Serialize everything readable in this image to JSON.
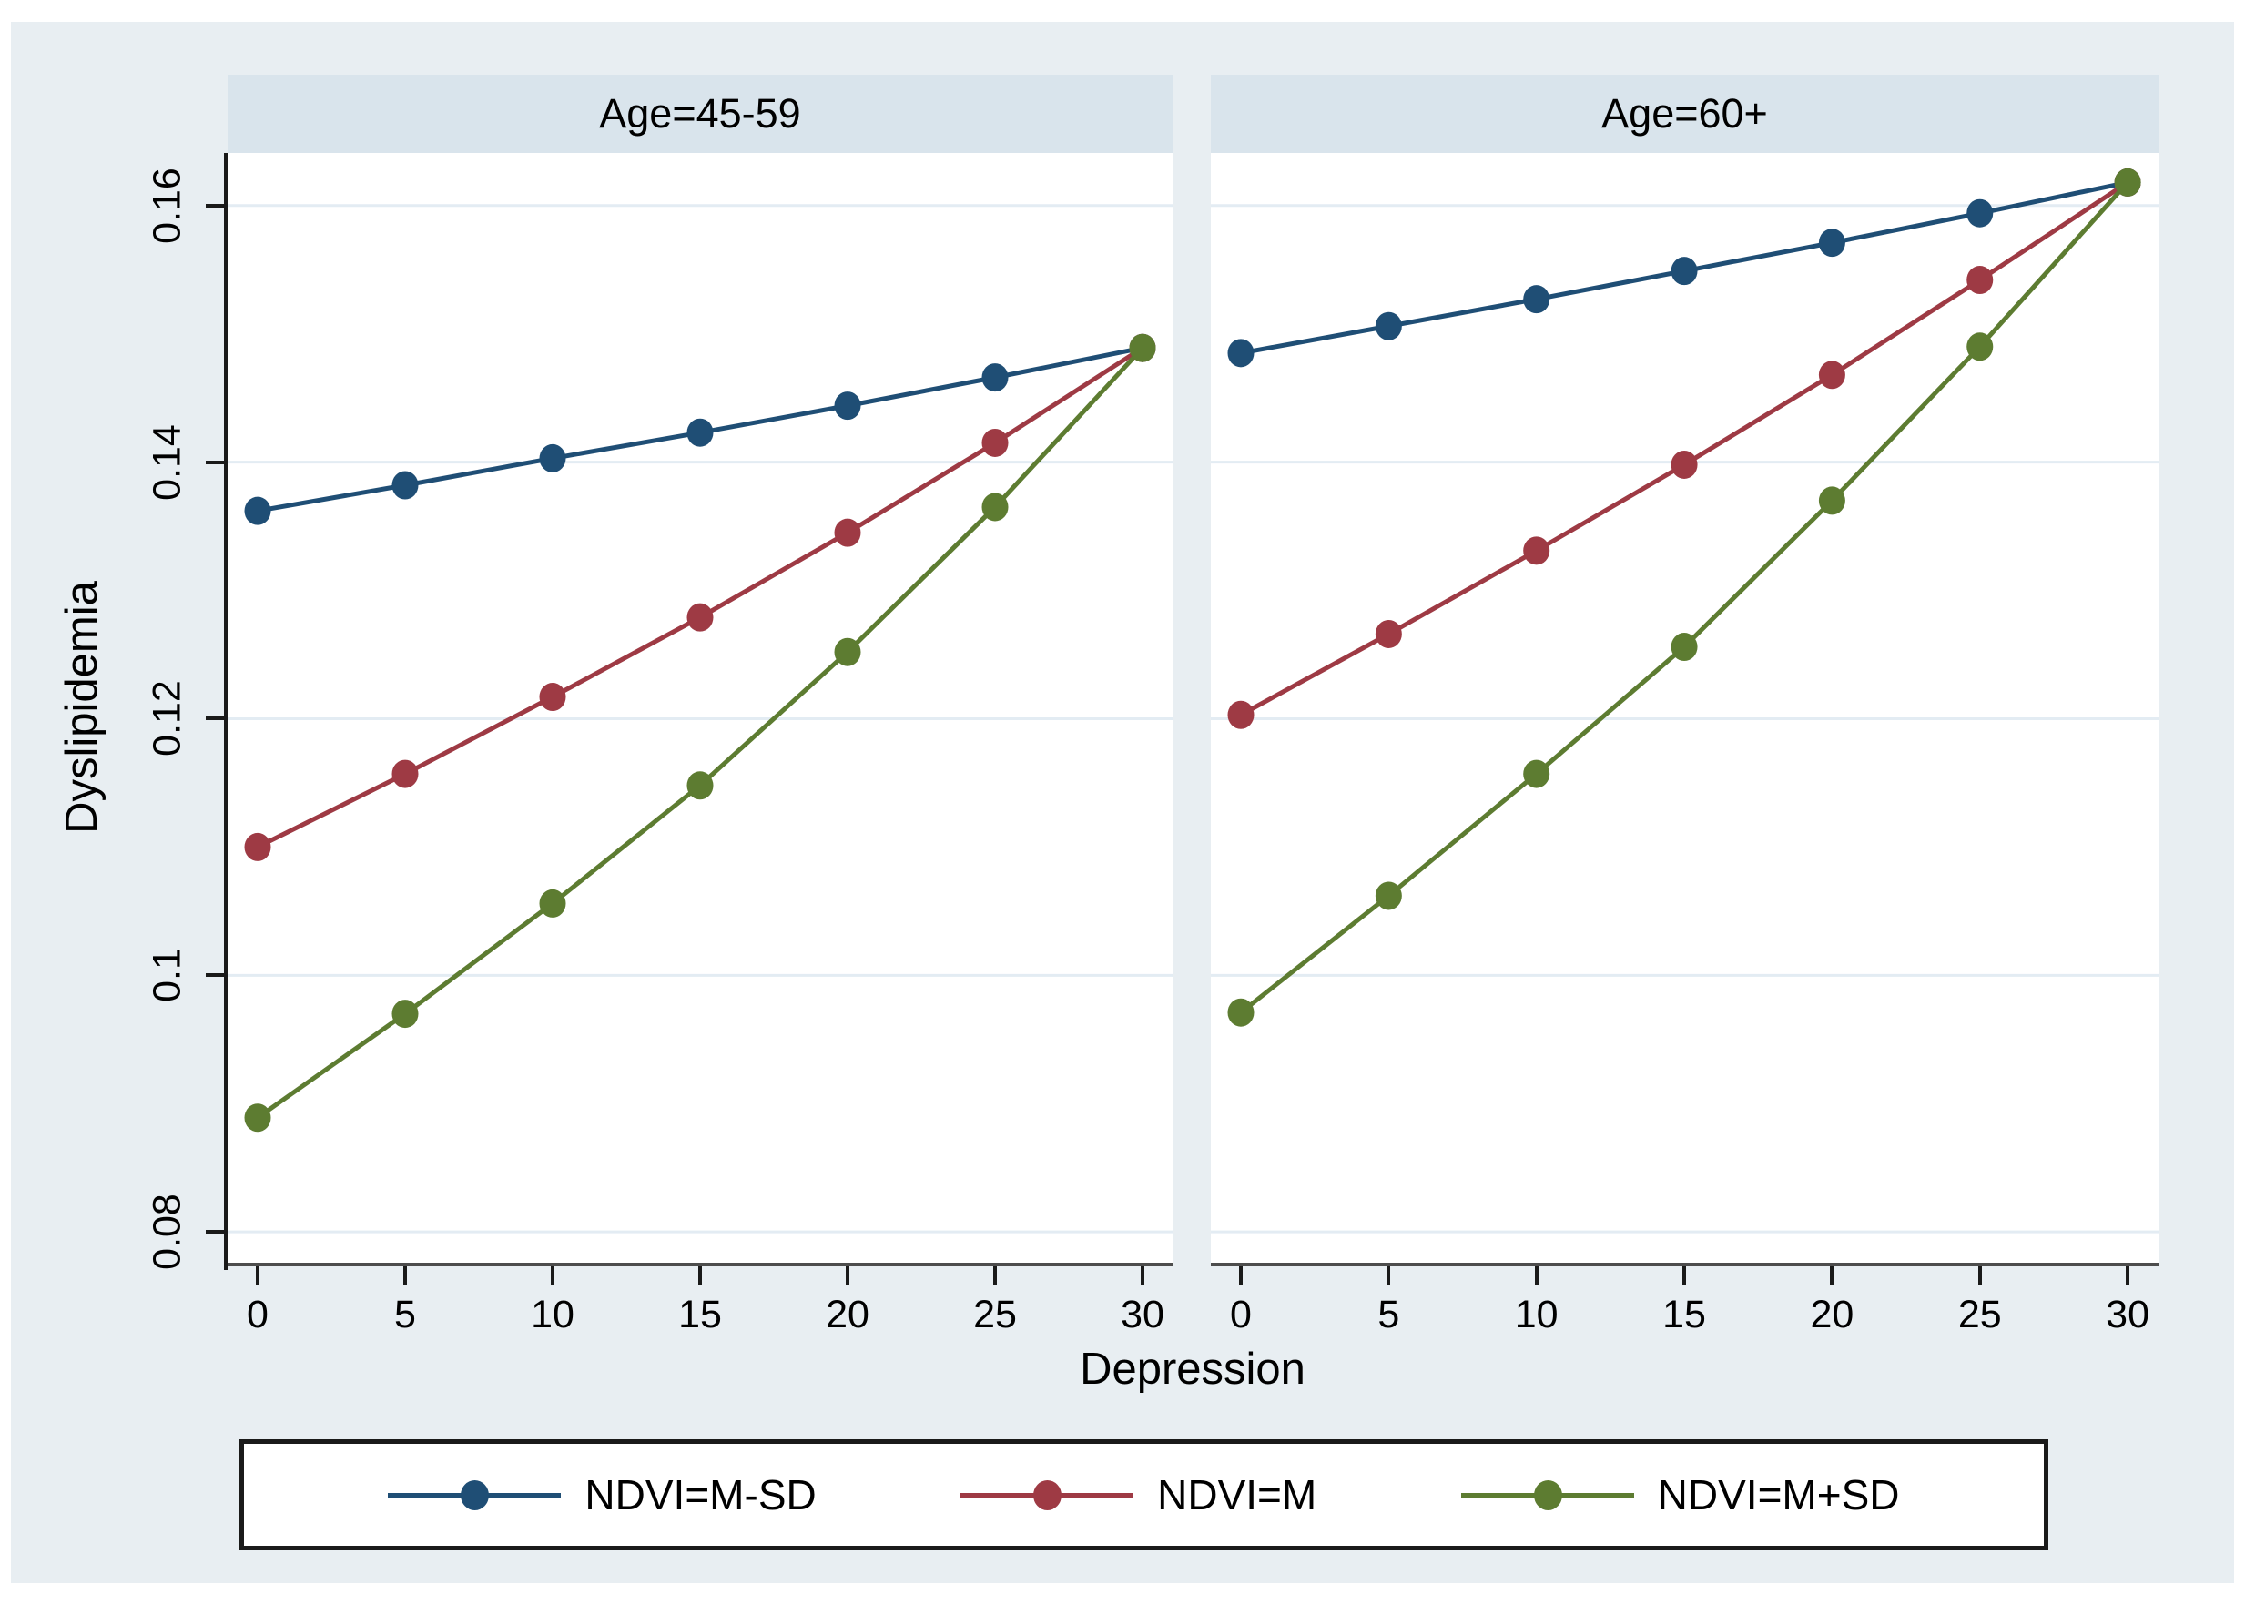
{
  "figure": {
    "y_axis_title": "Dyslipidemia",
    "x_axis_title": "Depression",
    "legend": [
      {
        "label": "NDVI=M-SD",
        "color": "#1f4e75"
      },
      {
        "label": "NDVI=M",
        "color": "#9e3a44"
      },
      {
        "label": "NDVI=M+SD",
        "color": "#5d7c31"
      }
    ]
  },
  "colors": {
    "page_background": "#ffffff",
    "graph_region_background": "#e8eef2",
    "panel_banner_background": "#d9e4ec",
    "plot_background": "#ffffff",
    "gridline": "#e3ecf3",
    "y_axis_line": "#1a1a1a",
    "bottom_axis_line": "#4d4d4d",
    "series_blue": "#1f4e75",
    "series_red": "#9e3a44",
    "series_green": "#5d7c31"
  },
  "chart_data": [
    {
      "type": "line",
      "title": "Age=45-59",
      "x": [
        0,
        5,
        10,
        15,
        20,
        25,
        30
      ],
      "series": [
        {
          "name": "NDVI=M-SD",
          "color": "#1f4e75",
          "values": [
            0.1362,
            0.1382,
            0.1403,
            0.1423,
            0.1444,
            0.1466,
            0.1489
          ]
        },
        {
          "name": "NDVI=M",
          "color": "#9e3a44",
          "values": [
            0.11,
            0.1157,
            0.1217,
            0.1279,
            0.1345,
            0.1415,
            0.1489
          ]
        },
        {
          "name": "NDVI=M+SD",
          "color": "#5d7c31",
          "values": [
            0.0889,
            0.097,
            0.1056,
            0.1148,
            0.1252,
            0.1365,
            0.1489
          ]
        }
      ],
      "xlabel": "Depression",
      "ylabel": "Dyslipidemia",
      "xticks": [
        0,
        5,
        10,
        15,
        20,
        25,
        30
      ],
      "xtick_labels": [
        "0",
        "5",
        "10",
        "15",
        "20",
        "25",
        "30"
      ],
      "yticks": [
        0.08,
        0.1,
        0.12,
        0.14,
        0.16
      ],
      "ytick_labels": [
        "0.08",
        "0.1",
        "0.12",
        "0.14",
        "0.16"
      ],
      "xlim": [
        -1,
        31
      ],
      "ylim": [
        0.0776,
        0.1641
      ],
      "grid": "horizontal",
      "legend_position": "bottom"
    },
    {
      "type": "line",
      "title": "Age=60+",
      "x": [
        0,
        5,
        10,
        15,
        20,
        25,
        30
      ],
      "series": [
        {
          "name": "NDVI=M-SD",
          "color": "#1f4e75",
          "values": [
            0.1485,
            0.1506,
            0.1527,
            0.1549,
            0.1571,
            0.1594,
            0.1618
          ]
        },
        {
          "name": "NDVI=M",
          "color": "#9e3a44",
          "values": [
            0.1203,
            0.1266,
            0.1331,
            0.1398,
            0.1468,
            0.1542,
            0.1618
          ]
        },
        {
          "name": "NDVI=M+SD",
          "color": "#5d7c31",
          "values": [
            0.0971,
            0.1062,
            0.1157,
            0.1256,
            0.137,
            0.149,
            0.1618
          ]
        }
      ],
      "xlabel": "Depression",
      "ylabel": "Dyslipidemia",
      "xticks": [
        0,
        5,
        10,
        15,
        20,
        25,
        30
      ],
      "xtick_labels": [
        "0",
        "5",
        "10",
        "15",
        "20",
        "25",
        "30"
      ],
      "yticks": [
        0.08,
        0.1,
        0.12,
        0.14,
        0.16
      ],
      "ytick_labels": [
        "0.08",
        "0.1",
        "0.12",
        "0.14",
        "0.16"
      ],
      "xlim": [
        -1,
        31
      ],
      "ylim": [
        0.0776,
        0.1641
      ],
      "grid": "horizontal",
      "legend_position": "bottom"
    }
  ]
}
